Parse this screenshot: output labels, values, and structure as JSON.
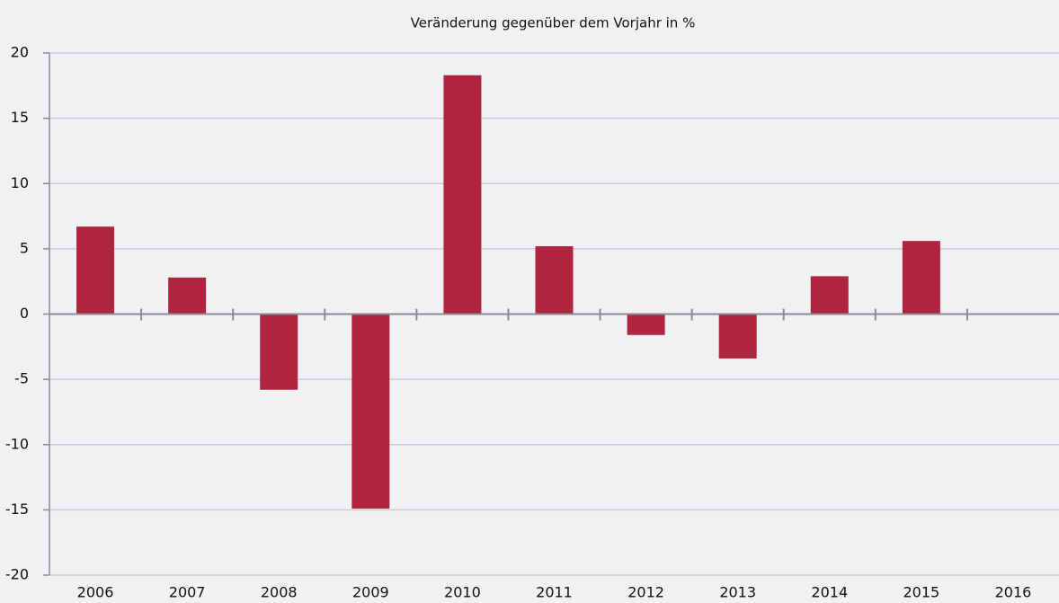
{
  "chart_data": {
    "type": "bar",
    "title": "Veränderung gegenüber dem Vorjahr in %",
    "categories": [
      "2006",
      "2007",
      "2008",
      "2009",
      "2010",
      "2011",
      "2012",
      "2013",
      "2014",
      "2015",
      "2016"
    ],
    "values": [
      6.7,
      2.8,
      -5.8,
      -14.9,
      18.3,
      5.2,
      -1.6,
      -3.4,
      2.9,
      5.6,
      null
    ],
    "color": "#b0243f",
    "ylim": [
      -20,
      20
    ],
    "yticks": [
      -20,
      -15,
      -10,
      -5,
      0,
      5,
      10,
      15,
      20
    ],
    "grid": true
  }
}
